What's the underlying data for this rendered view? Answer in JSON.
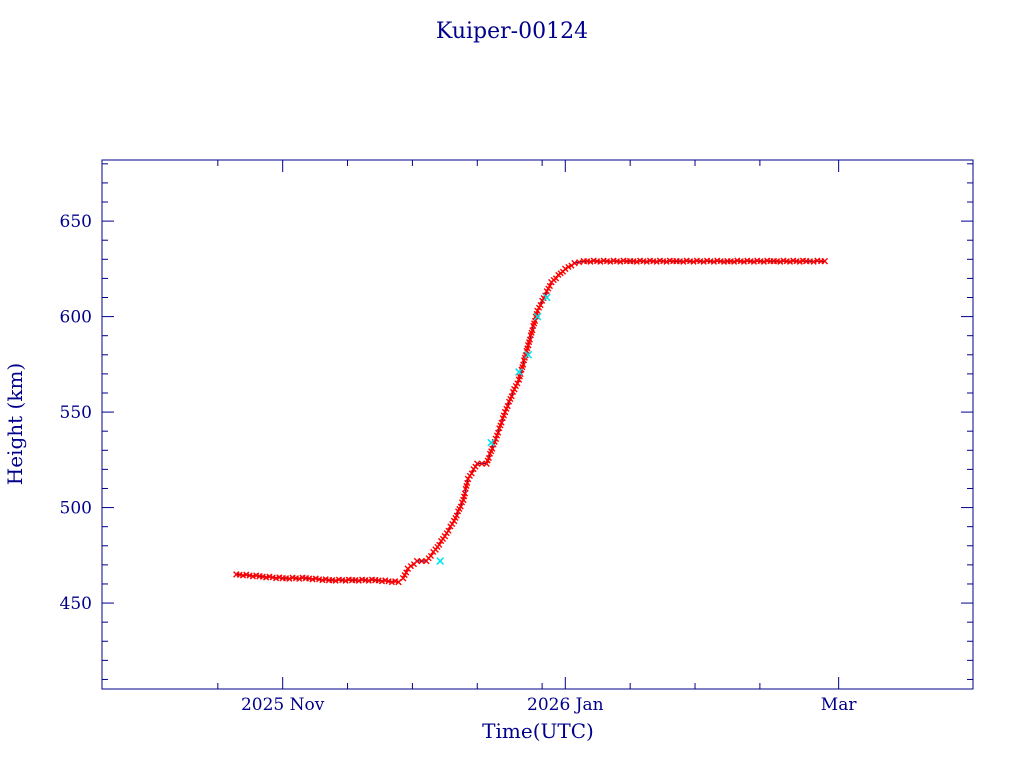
{
  "chart_data": {
    "type": "scatter",
    "title": "Kuiper-00124",
    "xlabel": "Time(UTC)",
    "ylabel": "Height (km)",
    "xlim": [
      "2025-09-23",
      "2026-03-30"
    ],
    "ylim": [
      405,
      682
    ],
    "x_ticks": [
      {
        "date": "2025-11-01",
        "label": "2025 Nov"
      },
      {
        "date": "2026-01-01",
        "label": "2026 Jan"
      },
      {
        "date": "2026-03-01",
        "label": "Mar"
      }
    ],
    "x_minor_ticks": [
      "2025-10-18",
      "2025-11-15",
      "2025-11-29",
      "2025-12-13",
      "2025-12-27",
      "2026-01-15",
      "2026-01-29",
      "2026-02-12"
    ],
    "y_ticks": [
      450,
      500,
      550,
      600,
      650
    ],
    "y_minor_step": 10,
    "grid": false,
    "colors": {
      "axes": "#00008b",
      "text": "#00008b",
      "points": "#ff0000",
      "line": "#00008b",
      "highlight": "#00e5ee"
    },
    "series": [
      {
        "marker": "x",
        "color": "#ff0000",
        "x": [
          "2025-10-22",
          "2025-10-27",
          "2025-11-01",
          "2025-11-06",
          "2025-11-11",
          "2025-11-16",
          "2025-11-21",
          "2025-11-26",
          "2025-11-27",
          "2025-11-28",
          "2025-11-30",
          "2025-12-02",
          "2025-12-04",
          "2025-12-06",
          "2025-12-08",
          "2025-12-10",
          "2025-12-11",
          "2025-12-13",
          "2025-12-15",
          "2025-12-17",
          "2025-12-19",
          "2025-12-21",
          "2025-12-22",
          "2025-12-24",
          "2025-12-26",
          "2025-12-29",
          "2026-01-01",
          "2026-01-03",
          "2026-01-05",
          "2026-01-15",
          "2026-01-25",
          "2026-02-05",
          "2026-02-15",
          "2026-02-22",
          "2026-02-26"
        ],
        "y": [
          465,
          464,
          463,
          463,
          462,
          462,
          462,
          461,
          463,
          468,
          472,
          472,
          478,
          485,
          493,
          504,
          515,
          523,
          523,
          536,
          550,
          562,
          567,
          585,
          603,
          618,
          625,
          628,
          629,
          629,
          629,
          629,
          629,
          629,
          629
        ]
      },
      {
        "marker": "x",
        "color": "#00e5ee",
        "x": [
          "2025-12-05",
          "2025-12-16",
          "2025-12-22",
          "2025-12-24",
          "2025-12-26",
          "2025-12-28"
        ],
        "y": [
          472,
          534,
          571,
          580,
          600,
          610
        ]
      }
    ]
  }
}
